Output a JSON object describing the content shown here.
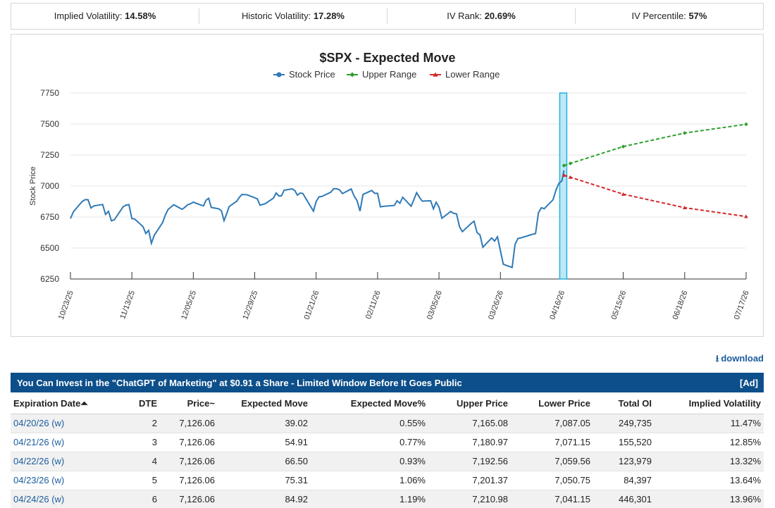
{
  "stats": [
    {
      "label": "Implied Volatility:",
      "value": "14.58%"
    },
    {
      "label": "Historic Volatility:",
      "value": "17.28%"
    },
    {
      "label": "IV Rank:",
      "value": "20.69%"
    },
    {
      "label": "IV Percentile:",
      "value": "57%"
    }
  ],
  "chart_data": {
    "type": "line",
    "title": "$SPX - Expected Move",
    "ylabel": "Stock Price",
    "ylim": [
      6250,
      7750
    ],
    "yticks": [
      6250,
      6500,
      6750,
      7000,
      7250,
      7500,
      7750
    ],
    "grid": true,
    "legend_position": "top-center",
    "xtick_labels": [
      "10/23/25",
      "11/13/25",
      "12/05/25",
      "12/29/25",
      "01/21/26",
      "02/11/26",
      "03/05/26",
      "03/26/26",
      "04/16/26",
      "05/15/26",
      "06/18/26",
      "07/17/26"
    ],
    "xtick_dates": [
      "2025-10-23",
      "2025-11-13",
      "2025-12-05",
      "2025-12-29",
      "2026-01-21",
      "2026-02-11",
      "2026-03-05",
      "2026-03-26",
      "2026-04-16",
      "2026-05-15",
      "2026-06-18",
      "2026-07-17"
    ],
    "highlight_date": "2026-04-17",
    "series": [
      {
        "name": "Stock Price",
        "color": "#2f7ab7",
        "marker": "circle",
        "style": "solid",
        "points": [
          [
            "2025-10-23",
            6738
          ],
          [
            "2025-10-24",
            6792
          ],
          [
            "2025-10-27",
            6875
          ],
          [
            "2025-10-28",
            6890
          ],
          [
            "2025-10-29",
            6890
          ],
          [
            "2025-10-30",
            6822
          ],
          [
            "2025-10-31",
            6840
          ],
          [
            "2025-11-03",
            6851
          ],
          [
            "2025-11-04",
            6771
          ],
          [
            "2025-11-05",
            6796
          ],
          [
            "2025-11-06",
            6720
          ],
          [
            "2025-11-07",
            6728
          ],
          [
            "2025-11-10",
            6832
          ],
          [
            "2025-11-11",
            6846
          ],
          [
            "2025-11-12",
            6850
          ],
          [
            "2025-11-13",
            6737
          ],
          [
            "2025-11-14",
            6734
          ],
          [
            "2025-11-17",
            6672
          ],
          [
            "2025-11-18",
            6617
          ],
          [
            "2025-11-19",
            6642
          ],
          [
            "2025-11-20",
            6538
          ],
          [
            "2025-11-21",
            6602
          ],
          [
            "2025-11-24",
            6705
          ],
          [
            "2025-11-25",
            6766
          ],
          [
            "2025-11-26",
            6812
          ],
          [
            "2025-11-28",
            6849
          ],
          [
            "2025-12-01",
            6812
          ],
          [
            "2025-12-02",
            6829
          ],
          [
            "2025-12-03",
            6849
          ],
          [
            "2025-12-04",
            6857
          ],
          [
            "2025-12-05",
            6870
          ],
          [
            "2025-12-08",
            6846
          ],
          [
            "2025-12-09",
            6840
          ],
          [
            "2025-12-10",
            6886
          ],
          [
            "2025-12-11",
            6901
          ],
          [
            "2025-12-12",
            6827
          ],
          [
            "2025-12-15",
            6816
          ],
          [
            "2025-12-16",
            6800
          ],
          [
            "2025-12-17",
            6721
          ],
          [
            "2025-12-18",
            6774
          ],
          [
            "2025-12-19",
            6834
          ],
          [
            "2025-12-22",
            6878
          ],
          [
            "2025-12-23",
            6909
          ],
          [
            "2025-12-24",
            6932
          ],
          [
            "2025-12-26",
            6929
          ],
          [
            "2025-12-29",
            6905
          ],
          [
            "2025-12-30",
            6896
          ],
          [
            "2025-12-31",
            6845
          ],
          [
            "2026-01-02",
            6858
          ],
          [
            "2026-01-05",
            6902
          ],
          [
            "2026-01-06",
            6944
          ],
          [
            "2026-01-07",
            6920
          ],
          [
            "2026-01-08",
            6921
          ],
          [
            "2026-01-09",
            6966
          ],
          [
            "2026-01-12",
            6977
          ],
          [
            "2026-01-13",
            6963
          ],
          [
            "2026-01-14",
            6926
          ],
          [
            "2026-01-15",
            6944
          ],
          [
            "2026-01-16",
            6940
          ],
          [
            "2026-01-20",
            6797
          ],
          [
            "2026-01-21",
            6875
          ],
          [
            "2026-01-22",
            6913
          ],
          [
            "2026-01-23",
            6916
          ],
          [
            "2026-01-26",
            6950
          ],
          [
            "2026-01-27",
            6978
          ],
          [
            "2026-01-28",
            6978
          ],
          [
            "2026-01-29",
            6969
          ],
          [
            "2026-01-30",
            6939
          ],
          [
            "2026-02-02",
            6976
          ],
          [
            "2026-02-03",
            6918
          ],
          [
            "2026-02-04",
            6882
          ],
          [
            "2026-02-05",
            6798
          ],
          [
            "2026-02-06",
            6932
          ],
          [
            "2026-02-09",
            6964
          ],
          [
            "2026-02-10",
            6941
          ],
          [
            "2026-02-11",
            6941
          ],
          [
            "2026-02-12",
            6832
          ],
          [
            "2026-02-13",
            6836
          ],
          [
            "2026-02-17",
            6843
          ],
          [
            "2026-02-18",
            6881
          ],
          [
            "2026-02-19",
            6861
          ],
          [
            "2026-02-20",
            6909
          ],
          [
            "2026-02-23",
            6837
          ],
          [
            "2026-02-24",
            6890
          ],
          [
            "2026-02-25",
            6946
          ],
          [
            "2026-02-26",
            6908
          ],
          [
            "2026-02-27",
            6878
          ],
          [
            "2026-03-02",
            6881
          ],
          [
            "2026-03-03",
            6816
          ],
          [
            "2026-03-04",
            6869
          ],
          [
            "2026-03-05",
            6830
          ],
          [
            "2026-03-06",
            6740
          ],
          [
            "2026-03-09",
            6795
          ],
          [
            "2026-03-10",
            6780
          ],
          [
            "2026-03-11",
            6775
          ],
          [
            "2026-03-12",
            6672
          ],
          [
            "2026-03-13",
            6632
          ],
          [
            "2026-03-16",
            6699
          ],
          [
            "2026-03-17",
            6716
          ],
          [
            "2026-03-18",
            6624
          ],
          [
            "2026-03-19",
            6606
          ],
          [
            "2026-03-20",
            6506
          ],
          [
            "2026-03-23",
            6581
          ],
          [
            "2026-03-24",
            6556
          ],
          [
            "2026-03-25",
            6591
          ],
          [
            "2026-03-26",
            6477
          ],
          [
            "2026-03-27",
            6369
          ],
          [
            "2026-03-30",
            6343
          ],
          [
            "2026-03-31",
            6529
          ],
          [
            "2026-04-01",
            6577
          ],
          [
            "2026-04-02",
            6582
          ],
          [
            "2026-04-06",
            6611
          ],
          [
            "2026-04-07",
            6616
          ],
          [
            "2026-04-08",
            6783
          ],
          [
            "2026-04-09",
            6825
          ],
          [
            "2026-04-10",
            6817
          ],
          [
            "2026-04-13",
            6890
          ],
          [
            "2026-04-14",
            6969
          ],
          [
            "2026-04-15",
            7022
          ],
          [
            "2026-04-16",
            7041
          ],
          [
            "2026-04-17",
            7126
          ]
        ]
      },
      {
        "name": "Upper Range",
        "color": "#2ca02c",
        "marker": "diamond",
        "style": "dashed",
        "points": [
          [
            "2026-04-17",
            7165
          ],
          [
            "2026-04-20",
            7182
          ],
          [
            "2026-05-15",
            7318
          ],
          [
            "2026-06-18",
            7427
          ],
          [
            "2026-07-17",
            7498
          ]
        ]
      },
      {
        "name": "Lower Range",
        "color": "#d62728",
        "marker": "triangle",
        "style": "dashed",
        "points": [
          [
            "2026-04-17",
            7087
          ],
          [
            "2026-04-20",
            7071
          ],
          [
            "2026-05-15",
            6934
          ],
          [
            "2026-06-18",
            6825
          ],
          [
            "2026-07-17",
            6754
          ]
        ]
      }
    ]
  },
  "download_label": "download",
  "ad": {
    "text": "You Can Invest in the \"ChatGPT of Marketing\" at $0.91 a Share - Limited Window Before It Goes Public",
    "tag": "[Ad]"
  },
  "table": {
    "headers": [
      "Expiration Date⏶",
      "DTE",
      "Price~",
      "Expected Move",
      "Expected Move%",
      "Upper Price",
      "Lower Price",
      "Total OI",
      "Implied Volatility"
    ],
    "rows": [
      [
        "04/20/26 (w)",
        "2",
        "7,126.06",
        "39.02",
        "0.55%",
        "7,165.08",
        "7,087.05",
        "249,735",
        "11.47%"
      ],
      [
        "04/21/26 (w)",
        "3",
        "7,126.06",
        "54.91",
        "0.77%",
        "7,180.97",
        "7,071.15",
        "155,520",
        "12.85%"
      ],
      [
        "04/22/26 (w)",
        "4",
        "7,126.06",
        "66.50",
        "0.93%",
        "7,192.56",
        "7,059.56",
        "123,979",
        "13.32%"
      ],
      [
        "04/23/26 (w)",
        "5",
        "7,126.06",
        "75.31",
        "1.06%",
        "7,201.37",
        "7,050.75",
        "84,397",
        "13.64%"
      ],
      [
        "04/24/26 (w)",
        "6",
        "7,126.06",
        "84.92",
        "1.19%",
        "7,210.98",
        "7,041.15",
        "446,301",
        "13.96%"
      ]
    ]
  }
}
